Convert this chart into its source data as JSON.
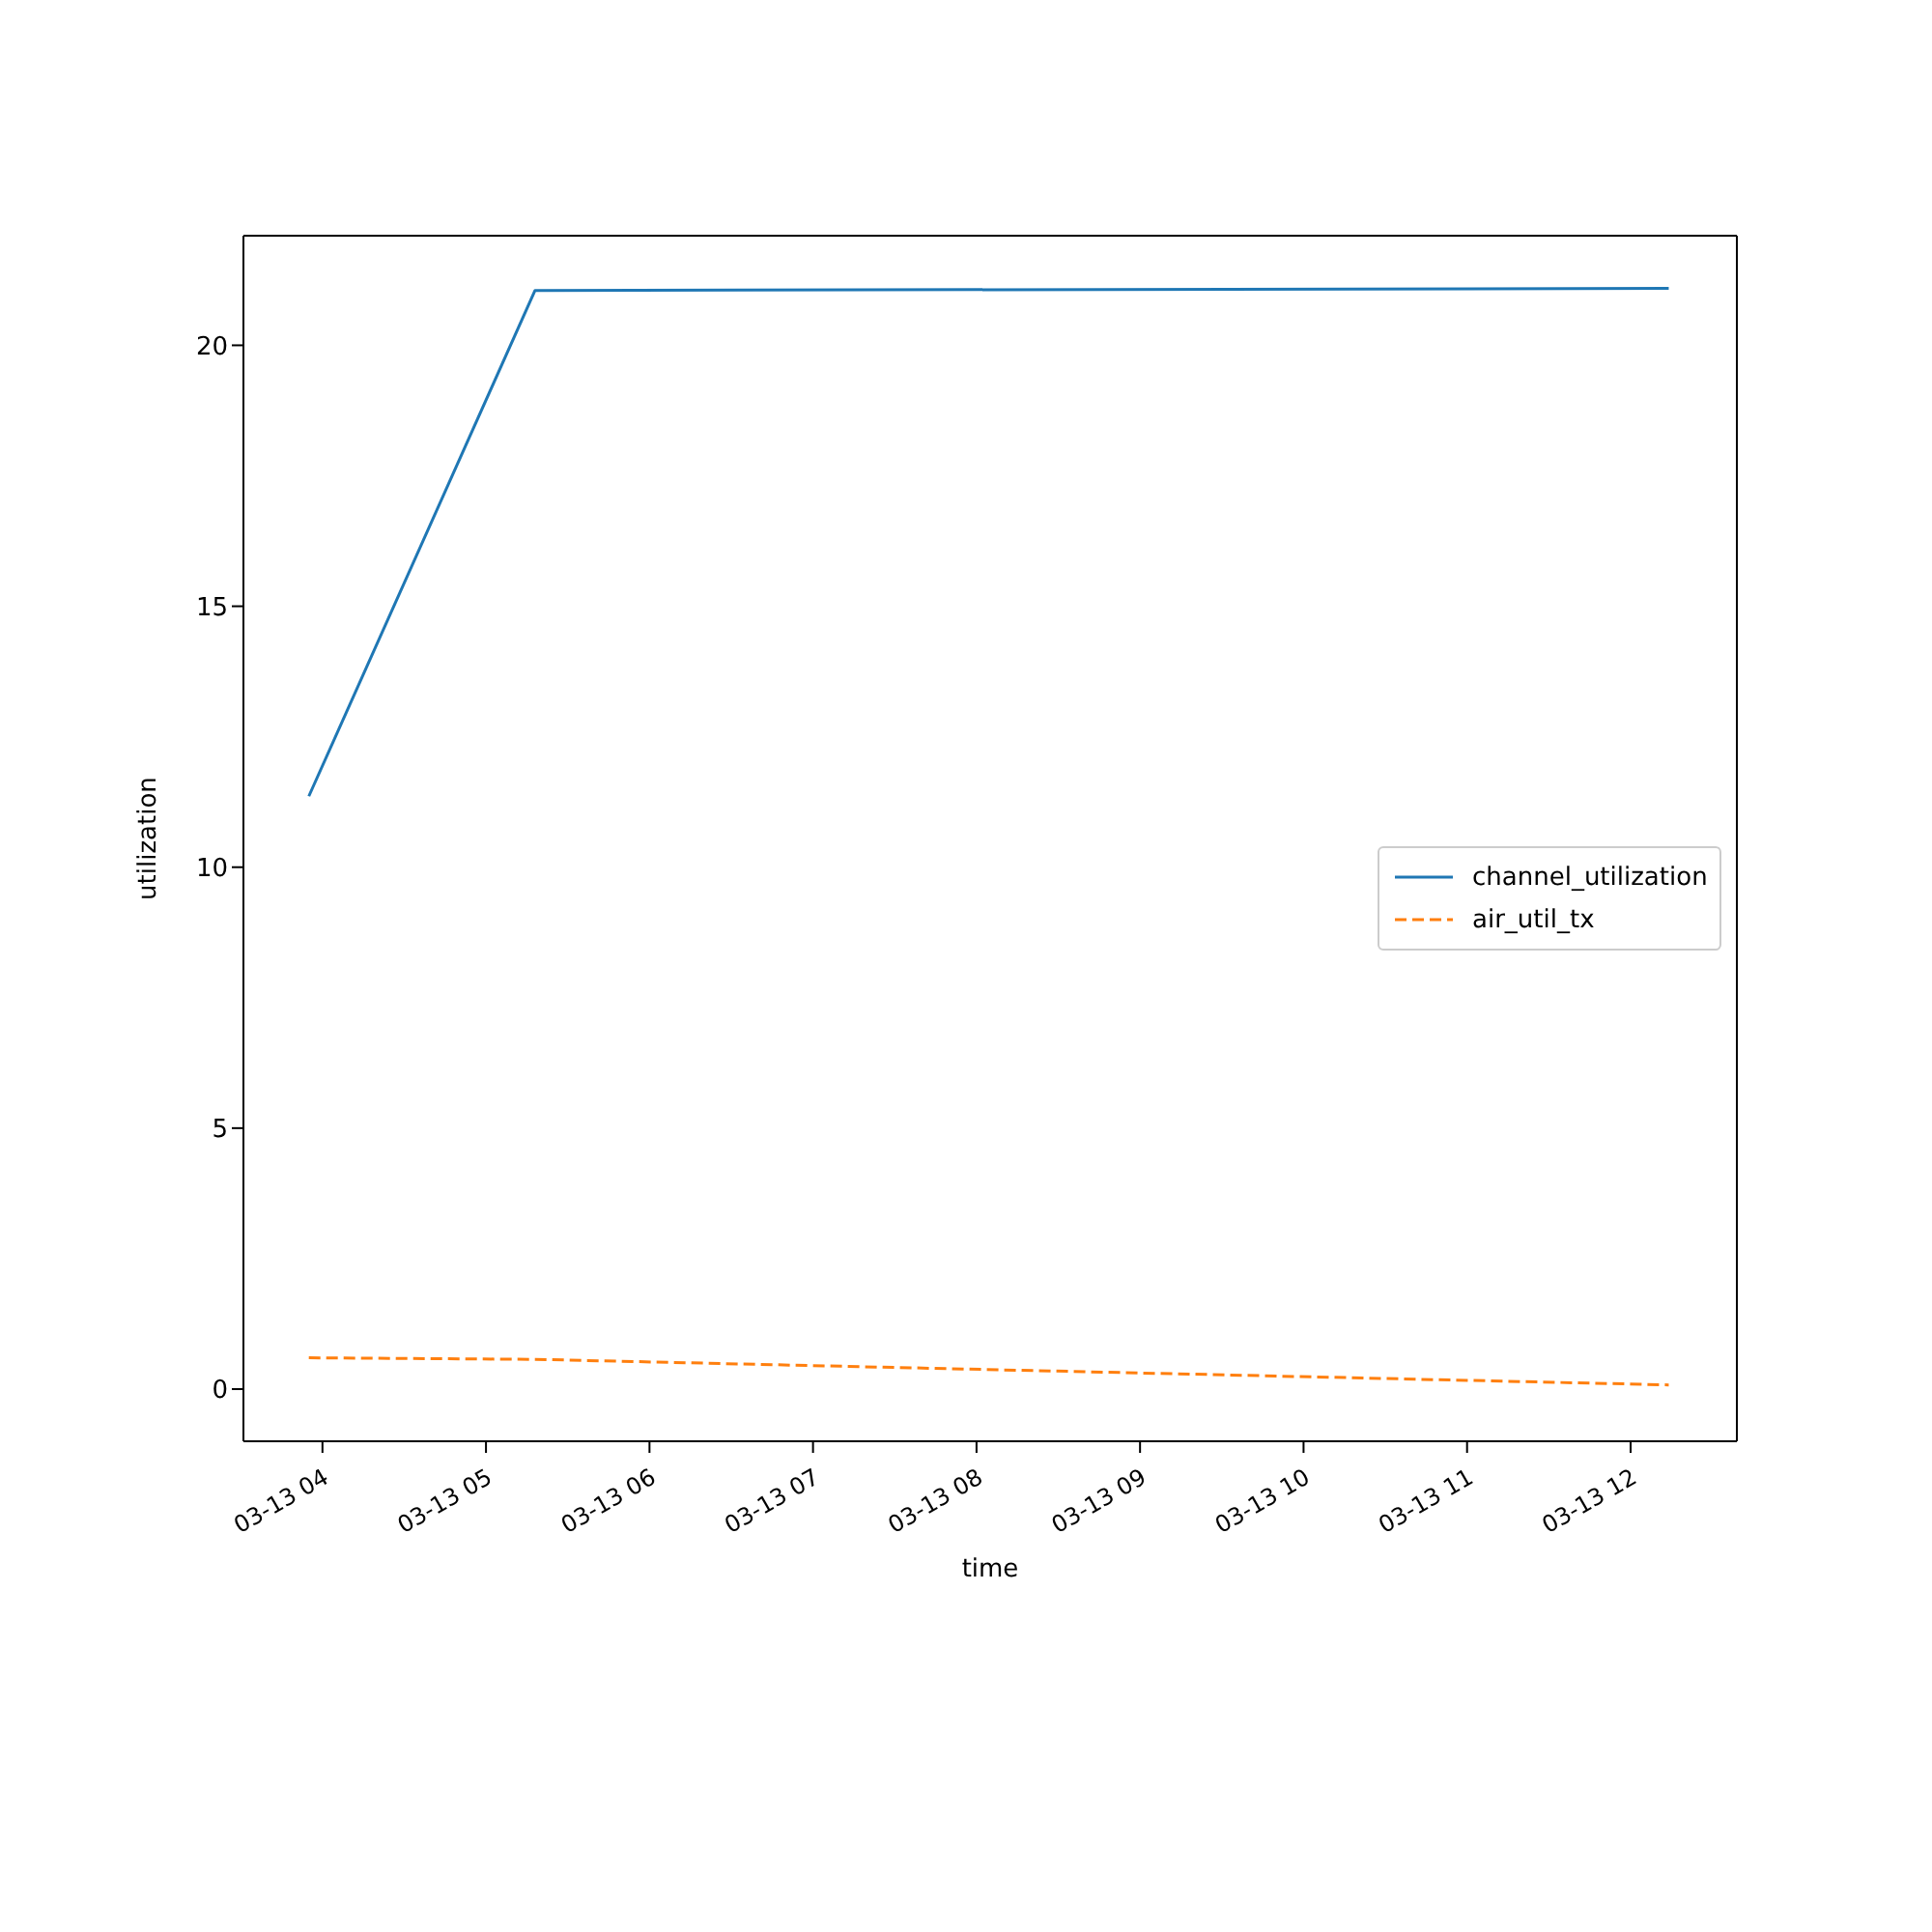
{
  "chart_data": {
    "type": "line",
    "xlabel": "time",
    "ylabel": "utilization",
    "x": [
      "--03-13T03:55",
      "--03-13T05:18",
      "--03-13T12:14"
    ],
    "series": [
      {
        "name": "channel_utilization",
        "color": "#1f77b4",
        "values": [
          11.36,
          21.05,
          21.09
        ],
        "line_style": "solid"
      },
      {
        "name": "air_util_tx",
        "color": "#ff7f0e",
        "values": [
          0.6,
          0.57,
          0.08
        ],
        "line_style": "dashed"
      }
    ],
    "xlim": [
      "--03-13T03:31",
      "--03-13T12:39"
    ],
    "xticks": [
      {
        "value": "--03-13T04:00",
        "label": "03-13 04"
      },
      {
        "value": "--03-13T05:00",
        "label": "03-13 05"
      },
      {
        "value": "--03-13T06:00",
        "label": "03-13 06"
      },
      {
        "value": "--03-13T07:00",
        "label": "03-13 07"
      },
      {
        "value": "--03-13T08:00",
        "label": "03-13 08"
      },
      {
        "value": "--03-13T09:00",
        "label": "03-13 09"
      },
      {
        "value": "--03-13T10:00",
        "label": "03-13 10"
      },
      {
        "value": "--03-13T11:00",
        "label": "03-13 11"
      },
      {
        "value": "--03-13T12:00",
        "label": "03-13 12"
      }
    ],
    "ylim": [
      -1,
      22.1
    ],
    "yticks": [
      0,
      5,
      10,
      15,
      20
    ],
    "legend": "right",
    "marker": "none"
  }
}
